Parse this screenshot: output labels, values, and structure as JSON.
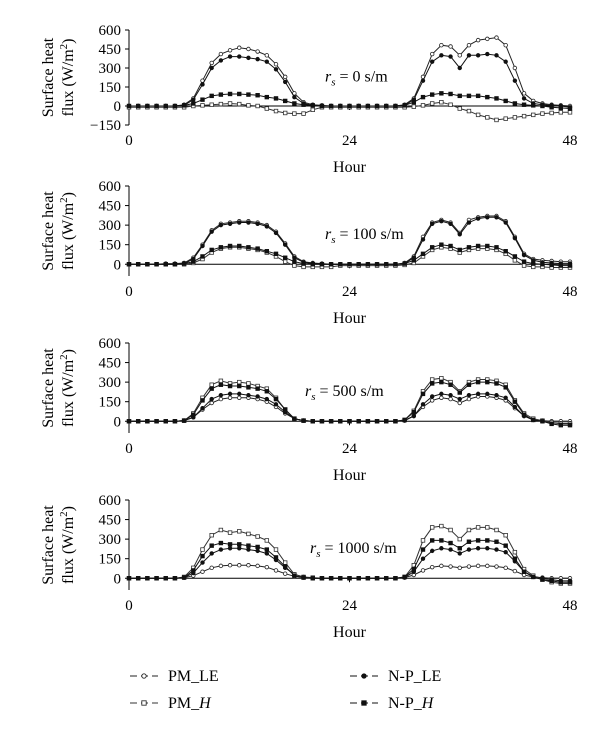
{
  "chart_data": [
    {
      "type": "line",
      "annotation": "r_s = 0 s/m",
      "annotation_symbol": "r",
      "annotation_subscript": "s",
      "annotation_text": " = 0 s/m",
      "ylabel_line1": "Surface heat",
      "ylabel_line2": "flux (W/m",
      "ylabel_sup": "2",
      "ylabel_close": ")",
      "xlabel": "Hour",
      "xlim": [
        0,
        48
      ],
      "ylim": [
        -150,
        600
      ],
      "xticks": [
        "0",
        "24",
        "48"
      ],
      "yticks": [
        "600",
        "450",
        "300",
        "150",
        "0",
        "−150"
      ],
      "ytick_values": [
        600,
        450,
        300,
        150,
        0,
        -150
      ],
      "x": [
        0,
        1,
        2,
        3,
        4,
        5,
        6,
        7,
        8,
        9,
        10,
        11,
        12,
        13,
        14,
        15,
        16,
        17,
        18,
        19,
        20,
        21,
        22,
        23,
        24,
        25,
        26,
        27,
        28,
        29,
        30,
        31,
        32,
        33,
        34,
        35,
        36,
        37,
        38,
        39,
        40,
        41,
        42,
        43,
        44,
        45,
        46,
        47,
        48
      ],
      "series": [
        {
          "name": "PM_LE",
          "values": [
            0,
            0,
            0,
            0,
            0,
            0,
            10,
            60,
            200,
            340,
            410,
            440,
            460,
            450,
            430,
            400,
            330,
            230,
            100,
            30,
            10,
            5,
            0,
            0,
            0,
            0,
            0,
            0,
            0,
            0,
            10,
            60,
            230,
            410,
            480,
            470,
            400,
            480,
            520,
            530,
            540,
            480,
            300,
            100,
            40,
            20,
            10,
            5,
            0
          ]
        },
        {
          "name": "N-P_LE",
          "values": [
            0,
            0,
            0,
            0,
            0,
            0,
            5,
            50,
            170,
            300,
            360,
            390,
            390,
            380,
            370,
            350,
            290,
            190,
            70,
            20,
            5,
            0,
            0,
            0,
            0,
            0,
            0,
            0,
            0,
            0,
            5,
            50,
            200,
            350,
            400,
            390,
            300,
            400,
            400,
            410,
            400,
            350,
            200,
            60,
            20,
            10,
            5,
            0,
            -10
          ]
        },
        {
          "name": "PM_H",
          "values": [
            -10,
            -10,
            -10,
            -10,
            -10,
            -10,
            -10,
            0,
            5,
            10,
            15,
            20,
            15,
            5,
            0,
            -20,
            -40,
            -55,
            -60,
            -60,
            -30,
            -10,
            -10,
            -10,
            -10,
            -10,
            -10,
            -10,
            -10,
            -10,
            -10,
            -5,
            5,
            20,
            30,
            10,
            -20,
            -40,
            -70,
            -90,
            -110,
            -100,
            -90,
            -80,
            -70,
            -60,
            -55,
            -50,
            -50
          ]
        },
        {
          "name": "N-P_H",
          "values": [
            0,
            0,
            0,
            0,
            0,
            0,
            5,
            20,
            50,
            80,
            90,
            95,
            95,
            90,
            85,
            70,
            60,
            40,
            20,
            10,
            5,
            0,
            0,
            0,
            0,
            0,
            0,
            0,
            0,
            0,
            5,
            30,
            70,
            90,
            100,
            95,
            80,
            80,
            80,
            70,
            60,
            40,
            20,
            10,
            5,
            0,
            -10,
            -15,
            -20
          ]
        }
      ]
    },
    {
      "type": "line",
      "annotation": "r_s = 100 s/m",
      "annotation_symbol": "r",
      "annotation_subscript": "s",
      "annotation_text": " = 100 s/m",
      "ylabel_line1": "Surface heat",
      "ylabel_line2": "flux (W/m",
      "ylabel_sup": "2",
      "ylabel_close": ")",
      "xlabel": "Hour",
      "xlim": [
        0,
        48
      ],
      "ylim": [
        -90,
        600
      ],
      "xticks": [
        "0",
        "24",
        "48"
      ],
      "yticks": [
        "600",
        "450",
        "300",
        "150",
        "0"
      ],
      "ytick_values": [
        600,
        450,
        300,
        150,
        0
      ],
      "x": [
        0,
        1,
        2,
        3,
        4,
        5,
        6,
        7,
        8,
        9,
        10,
        11,
        12,
        13,
        14,
        15,
        16,
        17,
        18,
        19,
        20,
        21,
        22,
        23,
        24,
        25,
        26,
        27,
        28,
        29,
        30,
        31,
        32,
        33,
        34,
        35,
        36,
        37,
        38,
        39,
        40,
        41,
        42,
        43,
        44,
        45,
        46,
        47,
        48
      ],
      "series": [
        {
          "name": "PM_LE",
          "values": [
            0,
            0,
            0,
            0,
            5,
            5,
            10,
            50,
            150,
            260,
            310,
            320,
            330,
            330,
            320,
            300,
            250,
            160,
            60,
            20,
            10,
            5,
            0,
            0,
            0,
            0,
            0,
            0,
            0,
            0,
            10,
            60,
            210,
            320,
            340,
            320,
            240,
            340,
            360,
            370,
            370,
            330,
            210,
            80,
            40,
            30,
            25,
            20,
            20
          ]
        },
        {
          "name": "N-P_LE",
          "values": [
            0,
            0,
            0,
            0,
            0,
            0,
            5,
            40,
            140,
            250,
            300,
            310,
            320,
            320,
            310,
            290,
            240,
            150,
            50,
            15,
            5,
            0,
            0,
            0,
            0,
            0,
            0,
            0,
            0,
            0,
            5,
            50,
            190,
            310,
            330,
            310,
            230,
            320,
            350,
            360,
            360,
            320,
            200,
            70,
            30,
            15,
            10,
            5,
            5
          ]
        },
        {
          "name": "PM_H",
          "values": [
            0,
            0,
            0,
            0,
            0,
            0,
            0,
            10,
            40,
            90,
            120,
            130,
            130,
            120,
            110,
            90,
            60,
            20,
            -10,
            -20,
            -20,
            -20,
            -20,
            -10,
            -10,
            -10,
            -10,
            -10,
            -10,
            -10,
            -5,
            10,
            60,
            110,
            130,
            120,
            90,
            110,
            120,
            120,
            110,
            80,
            30,
            -10,
            -20,
            -20,
            -25,
            -25,
            -25
          ]
        },
        {
          "name": "N-P_H",
          "values": [
            0,
            0,
            0,
            0,
            0,
            0,
            5,
            20,
            60,
            110,
            130,
            140,
            140,
            130,
            120,
            100,
            80,
            50,
            20,
            5,
            0,
            0,
            0,
            0,
            0,
            0,
            0,
            0,
            0,
            0,
            5,
            30,
            80,
            130,
            150,
            140,
            110,
            130,
            140,
            140,
            130,
            100,
            60,
            20,
            5,
            0,
            -5,
            -10,
            -10
          ]
        }
      ]
    },
    {
      "type": "line",
      "annotation": "r_s = 500 s/m",
      "annotation_symbol": "r",
      "annotation_subscript": "s",
      "annotation_text": " = 500 s/m",
      "ylabel_line1": "Surface heat",
      "ylabel_line2": "flux (W/m",
      "ylabel_sup": "2",
      "ylabel_close": ")",
      "xlabel": "Hour",
      "xlim": [
        0,
        48
      ],
      "ylim": [
        -90,
        600
      ],
      "xticks": [
        "0",
        "24",
        "48"
      ],
      "yticks": [
        "600",
        "450",
        "300",
        "150",
        "0"
      ],
      "ytick_values": [
        600,
        450,
        300,
        150,
        0
      ],
      "x": [
        0,
        1,
        2,
        3,
        4,
        5,
        6,
        7,
        8,
        9,
        10,
        11,
        12,
        13,
        14,
        15,
        16,
        17,
        18,
        19,
        20,
        21,
        22,
        23,
        24,
        25,
        26,
        27,
        28,
        29,
        30,
        31,
        32,
        33,
        34,
        35,
        36,
        37,
        38,
        39,
        40,
        41,
        42,
        43,
        44,
        45,
        46,
        47,
        48
      ],
      "series": [
        {
          "name": "PM_LE",
          "values": [
            0,
            0,
            0,
            0,
            0,
            0,
            5,
            30,
            90,
            140,
            170,
            180,
            180,
            180,
            170,
            150,
            110,
            60,
            20,
            5,
            0,
            0,
            0,
            0,
            0,
            0,
            0,
            0,
            0,
            0,
            5,
            40,
            110,
            160,
            180,
            170,
            140,
            170,
            190,
            190,
            180,
            160,
            100,
            40,
            10,
            5,
            0,
            0,
            0
          ]
        },
        {
          "name": "N-P_LE",
          "values": [
            0,
            0,
            0,
            0,
            0,
            0,
            5,
            30,
            100,
            170,
            200,
            210,
            210,
            200,
            190,
            170,
            130,
            70,
            20,
            5,
            0,
            0,
            0,
            0,
            0,
            0,
            0,
            0,
            0,
            0,
            5,
            40,
            130,
            190,
            210,
            200,
            170,
            200,
            210,
            210,
            200,
            180,
            110,
            40,
            10,
            0,
            -10,
            -15,
            -15
          ]
        },
        {
          "name": "PM_H",
          "values": [
            0,
            0,
            0,
            0,
            0,
            0,
            5,
            60,
            180,
            280,
            310,
            290,
            300,
            290,
            270,
            250,
            180,
            90,
            20,
            5,
            0,
            0,
            0,
            0,
            0,
            0,
            0,
            0,
            0,
            0,
            10,
            80,
            230,
            320,
            330,
            300,
            230,
            300,
            320,
            320,
            310,
            280,
            160,
            60,
            20,
            5,
            -10,
            -20,
            -20
          ]
        },
        {
          "name": "N-P_H",
          "values": [
            0,
            0,
            0,
            0,
            0,
            0,
            5,
            50,
            160,
            250,
            280,
            270,
            270,
            260,
            250,
            230,
            170,
            90,
            20,
            5,
            0,
            0,
            0,
            0,
            0,
            0,
            0,
            0,
            0,
            0,
            10,
            70,
            210,
            290,
            300,
            280,
            220,
            280,
            300,
            300,
            290,
            260,
            150,
            50,
            10,
            0,
            -20,
            -30,
            -30
          ]
        }
      ]
    },
    {
      "type": "line",
      "annotation": "r_s = 1000 s/m",
      "annotation_symbol": "r",
      "annotation_subscript": "s",
      "annotation_text": " = 1000 s/m",
      "ylabel_line1": "Surface heat",
      "ylabel_line2": "flux (W/m",
      "ylabel_sup": "2",
      "ylabel_close": ")",
      "xlabel": "Hour",
      "xlim": [
        0,
        48
      ],
      "ylim": [
        -90,
        600
      ],
      "xticks": [
        "0",
        "24",
        "48"
      ],
      "yticks": [
        "600",
        "450",
        "300",
        "150",
        "0"
      ],
      "ytick_values": [
        600,
        450,
        300,
        150,
        0
      ],
      "x": [
        0,
        1,
        2,
        3,
        4,
        5,
        6,
        7,
        8,
        9,
        10,
        11,
        12,
        13,
        14,
        15,
        16,
        17,
        18,
        19,
        20,
        21,
        22,
        23,
        24,
        25,
        26,
        27,
        28,
        29,
        30,
        31,
        32,
        33,
        34,
        35,
        36,
        37,
        38,
        39,
        40,
        41,
        42,
        43,
        44,
        45,
        46,
        47,
        48
      ],
      "series": [
        {
          "name": "PM_LE",
          "values": [
            0,
            0,
            0,
            0,
            0,
            0,
            5,
            20,
            50,
            80,
            95,
            100,
            100,
            100,
            95,
            85,
            60,
            35,
            15,
            5,
            0,
            0,
            0,
            0,
            0,
            0,
            0,
            0,
            0,
            0,
            5,
            25,
            60,
            85,
            95,
            90,
            80,
            90,
            95,
            95,
            90,
            80,
            55,
            25,
            10,
            5,
            0,
            0,
            0
          ]
        },
        {
          "name": "N-P_LE",
          "values": [
            0,
            0,
            0,
            0,
            0,
            0,
            5,
            40,
            120,
            190,
            220,
            230,
            230,
            220,
            210,
            190,
            140,
            80,
            30,
            10,
            0,
            0,
            0,
            0,
            0,
            0,
            0,
            0,
            0,
            0,
            5,
            50,
            150,
            210,
            230,
            220,
            190,
            220,
            230,
            230,
            220,
            200,
            130,
            50,
            15,
            0,
            -10,
            -20,
            -20
          ]
        },
        {
          "name": "PM_H",
          "values": [
            0,
            0,
            0,
            0,
            0,
            0,
            10,
            80,
            220,
            330,
            370,
            350,
            360,
            340,
            320,
            290,
            220,
            120,
            30,
            10,
            5,
            0,
            0,
            0,
            0,
            0,
            0,
            0,
            0,
            0,
            10,
            100,
            290,
            390,
            400,
            370,
            300,
            370,
            390,
            390,
            370,
            330,
            200,
            70,
            20,
            -10,
            -30,
            -40,
            -40
          ]
        },
        {
          "name": "N-P_H",
          "values": [
            0,
            0,
            0,
            0,
            0,
            0,
            5,
            60,
            170,
            250,
            270,
            260,
            260,
            250,
            240,
            220,
            160,
            90,
            20,
            5,
            0,
            0,
            0,
            0,
            0,
            0,
            0,
            0,
            0,
            0,
            10,
            70,
            220,
            290,
            290,
            270,
            230,
            280,
            290,
            290,
            280,
            250,
            150,
            50,
            10,
            -10,
            -20,
            -30,
            -30
          ]
        }
      ]
    }
  ],
  "legend": [
    {
      "name": "PM_LE",
      "prefix": "PM_",
      "suffix": "LE",
      "italic": false
    },
    {
      "name": "N-P_LE",
      "prefix": "N-P_",
      "suffix": "LE",
      "italic": false
    },
    {
      "name": "PM_H",
      "prefix": "PM_",
      "suffix": "H",
      "italic": true
    },
    {
      "name": "N-P_H",
      "prefix": "N-P_",
      "suffix": "H",
      "italic": true
    }
  ],
  "styles": {
    "PM_LE": {
      "color": "#222222",
      "marker": "circle-open"
    },
    "N-P_LE": {
      "color": "#111111",
      "marker": "circle-filled"
    },
    "PM_H": {
      "color": "#333333",
      "marker": "square-open"
    },
    "N-P_H": {
      "color": "#111111",
      "marker": "square-filled"
    }
  }
}
